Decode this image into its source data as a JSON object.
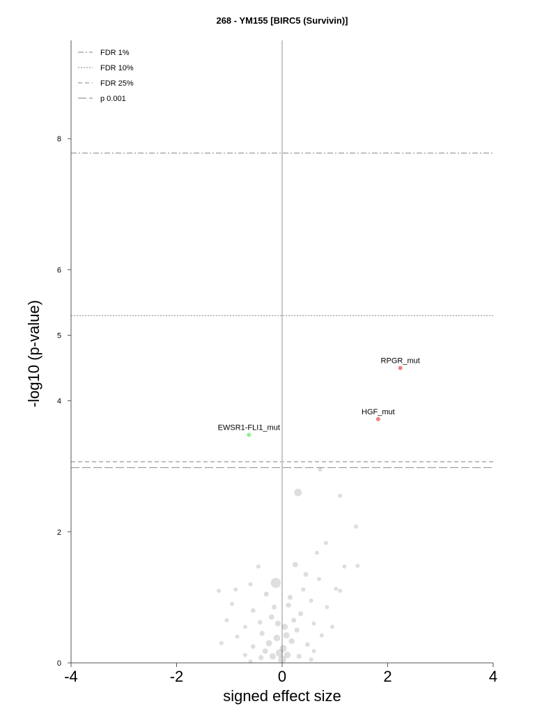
{
  "chart_data": {
    "type": "scatter",
    "title": "268 - YM155 [BIRC5 (Survivin)]",
    "xlabel": "signed effect size",
    "ylabel": "-log10 (p-value)",
    "xlim": [
      -4,
      4
    ],
    "ylim": [
      0,
      9.5
    ],
    "x_ticks": [
      "-4",
      "-2",
      "0",
      "2",
      "4"
    ],
    "y_ticks": [
      "0",
      "2",
      "4",
      "5",
      "6",
      "8"
    ],
    "grid": false,
    "legend_position": "top-left",
    "thresholds": [
      {
        "name": "FDR 1%",
        "y": 7.78,
        "style": "dashdot"
      },
      {
        "name": "FDR 10%",
        "y": 5.3,
        "style": "dotted"
      },
      {
        "name": "FDR 25%",
        "y": 3.07,
        "style": "dashed"
      },
      {
        "name": "p 0.001",
        "y": 2.98,
        "style": "longdash"
      }
    ],
    "highlighted_points": [
      {
        "label": "RPGR_mut",
        "x": 2.24,
        "y": 4.5,
        "color": "#f08080"
      },
      {
        "label": "HGF_mut",
        "x": 1.82,
        "y": 3.72,
        "color": "#f08080"
      },
      {
        "label": "EWSR1-FLI1_mut",
        "x": -0.63,
        "y": 3.48,
        "color": "#90ee90"
      }
    ],
    "background_points": [
      {
        "x": 0.72,
        "y": 2.95,
        "size": 1.0
      },
      {
        "x": 0.3,
        "y": 2.6,
        "size": 1.8
      },
      {
        "x": 1.1,
        "y": 2.55,
        "size": 1.0
      },
      {
        "x": 1.4,
        "y": 2.08,
        "size": 1.0
      },
      {
        "x": 0.83,
        "y": 1.83,
        "size": 1.0
      },
      {
        "x": 0.66,
        "y": 1.68,
        "size": 1.0
      },
      {
        "x": 1.43,
        "y": 1.48,
        "size": 1.0
      },
      {
        "x": 1.18,
        "y": 1.47,
        "size": 1.0
      },
      {
        "x": 0.25,
        "y": 1.5,
        "size": 1.3
      },
      {
        "x": -0.45,
        "y": 1.47,
        "size": 1.0
      },
      {
        "x": -0.12,
        "y": 1.22,
        "size": 2.4
      },
      {
        "x": 0.45,
        "y": 1.35,
        "size": 1.2
      },
      {
        "x": 0.7,
        "y": 1.28,
        "size": 1.0
      },
      {
        "x": 1.02,
        "y": 1.13,
        "size": 1.0
      },
      {
        "x": 1.1,
        "y": 1.1,
        "size": 1.0
      },
      {
        "x": -0.88,
        "y": 1.12,
        "size": 1.0
      },
      {
        "x": -0.6,
        "y": 1.2,
        "size": 1.0
      },
      {
        "x": -1.2,
        "y": 1.1,
        "size": 1.0
      },
      {
        "x": -0.3,
        "y": 1.05,
        "size": 1.2
      },
      {
        "x": 0.15,
        "y": 1.0,
        "size": 1.2
      },
      {
        "x": 0.55,
        "y": 0.95,
        "size": 1.0
      },
      {
        "x": -0.95,
        "y": 0.9,
        "size": 1.0
      },
      {
        "x": 0.85,
        "y": 0.85,
        "size": 1.0
      },
      {
        "x": -0.55,
        "y": 0.8,
        "size": 1.1
      },
      {
        "x": 0.35,
        "y": 0.75,
        "size": 1.2
      },
      {
        "x": -1.05,
        "y": 0.65,
        "size": 1.0
      },
      {
        "x": -0.2,
        "y": 0.7,
        "size": 1.3
      },
      {
        "x": 0.6,
        "y": 0.6,
        "size": 1.0
      },
      {
        "x": -0.7,
        "y": 0.55,
        "size": 1.0
      },
      {
        "x": 0.05,
        "y": 0.55,
        "size": 1.5
      },
      {
        "x": 0.28,
        "y": 0.5,
        "size": 1.2
      },
      {
        "x": -0.38,
        "y": 0.45,
        "size": 1.2
      },
      {
        "x": 0.75,
        "y": 0.42,
        "size": 1.0
      },
      {
        "x": -0.85,
        "y": 0.4,
        "size": 1.0
      },
      {
        "x": -0.1,
        "y": 0.38,
        "size": 1.6
      },
      {
        "x": 0.18,
        "y": 0.33,
        "size": 1.4
      },
      {
        "x": -0.25,
        "y": 0.3,
        "size": 1.5
      },
      {
        "x": 0.48,
        "y": 0.28,
        "size": 1.1
      },
      {
        "x": -0.55,
        "y": 0.25,
        "size": 1.1
      },
      {
        "x": 0.02,
        "y": 0.22,
        "size": 1.7
      },
      {
        "x": -0.05,
        "y": 0.15,
        "size": 1.8
      },
      {
        "x": 0.1,
        "y": 0.12,
        "size": 1.6
      },
      {
        "x": -0.18,
        "y": 0.1,
        "size": 1.5
      },
      {
        "x": 0.32,
        "y": 0.1,
        "size": 1.2
      },
      {
        "x": -0.4,
        "y": 0.08,
        "size": 1.2
      },
      {
        "x": 0.0,
        "y": 0.05,
        "size": 1.9
      },
      {
        "x": 0.6,
        "y": 0.18,
        "size": 1.0
      },
      {
        "x": -0.7,
        "y": 0.12,
        "size": 1.0
      },
      {
        "x": 0.22,
        "y": 0.65,
        "size": 1.2
      },
      {
        "x": -0.15,
        "y": 0.85,
        "size": 1.2
      },
      {
        "x": 0.4,
        "y": 1.12,
        "size": 1.0
      },
      {
        "x": -0.42,
        "y": 0.62,
        "size": 1.1
      },
      {
        "x": 0.95,
        "y": 0.55,
        "size": 1.0
      },
      {
        "x": -1.15,
        "y": 0.3,
        "size": 1.0
      },
      {
        "x": 0.12,
        "y": 0.88,
        "size": 1.2
      },
      {
        "x": -0.08,
        "y": 0.6,
        "size": 1.4
      },
      {
        "x": 0.08,
        "y": 0.42,
        "size": 1.5
      },
      {
        "x": -0.32,
        "y": 0.18,
        "size": 1.3
      },
      {
        "x": 0.55,
        "y": 0.05,
        "size": 1.0
      },
      {
        "x": -0.6,
        "y": 0.02,
        "size": 1.0
      }
    ]
  }
}
